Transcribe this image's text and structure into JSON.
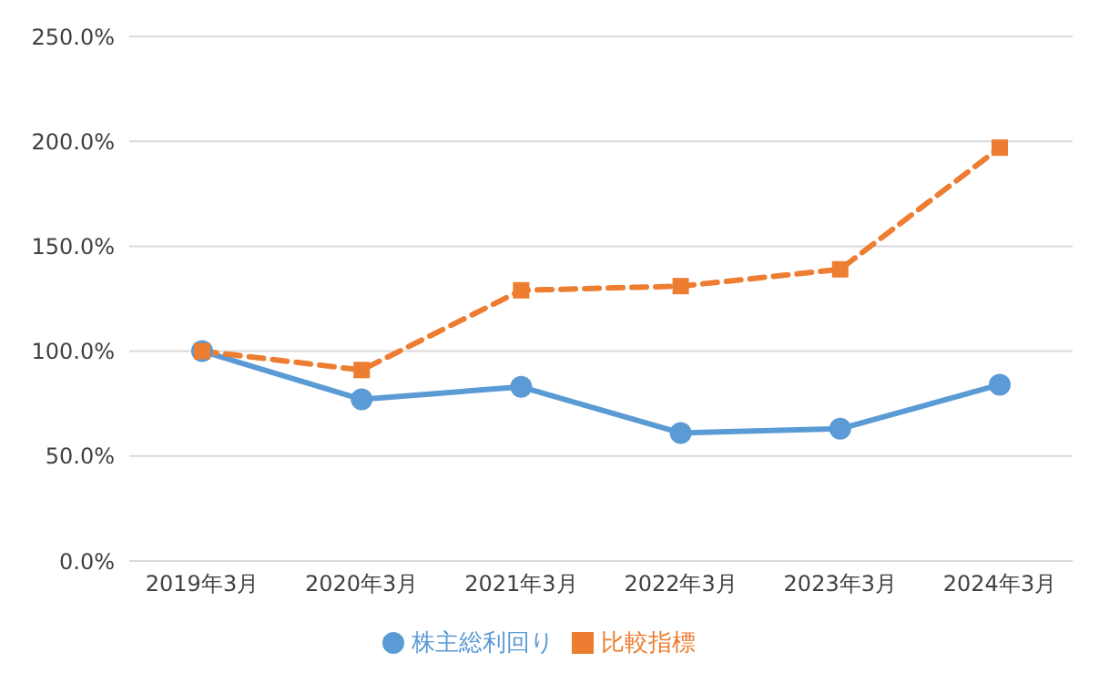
{
  "chart_data": {
    "type": "line",
    "categories": [
      "2019年3月",
      "2020年3月",
      "2021年3月",
      "2022年3月",
      "2023年3月",
      "2024年3月"
    ],
    "series": [
      {
        "name": "株主総利回り",
        "color": "#5b9bd5",
        "values": [
          100,
          77,
          83,
          61,
          63,
          84
        ],
        "marker": "circle",
        "line_style": "solid"
      },
      {
        "name": "比較指標",
        "color": "#ed7d31",
        "values": [
          100,
          91,
          129,
          131,
          139,
          197
        ],
        "marker": "square",
        "line_style": "dashed"
      }
    ],
    "ylim": [
      0,
      250
    ],
    "yticks": [
      {
        "value": 0,
        "label": "0.0%"
      },
      {
        "value": 50,
        "label": "50.0%"
      },
      {
        "value": 100,
        "label": "100.0%"
      },
      {
        "value": 150,
        "label": "150.0%"
      },
      {
        "value": 200,
        "label": "200.0%"
      },
      {
        "value": 250,
        "label": "250.0%"
      }
    ],
    "grid": "y",
    "legend": "bottom"
  }
}
